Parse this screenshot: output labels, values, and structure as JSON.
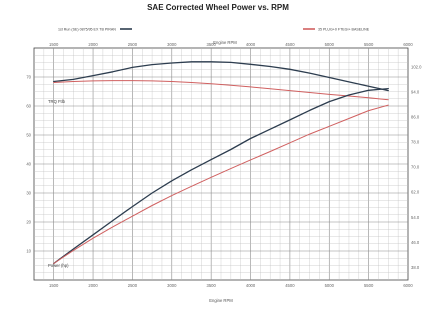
{
  "chart_data": {
    "type": "line",
    "title": "SAE Corrected Wheel Power vs. RPM",
    "subtitle": "",
    "xlabel": "Engine RPM",
    "ylabel": "",
    "y2label": "",
    "x": [
      1500,
      1750,
      2000,
      2250,
      2500,
      2750,
      3000,
      3250,
      3500,
      3750,
      4000,
      4250,
      4500,
      4750,
      5000,
      5250,
      5500,
      5750
    ],
    "xlim": [
      1250,
      6000
    ],
    "xticks": [
      1500,
      2000,
      2500,
      3000,
      3500,
      4000,
      4500,
      5000,
      5500,
      6000
    ],
    "ylim": [
      0,
      80
    ],
    "yticks": [
      10,
      20,
      30,
      40,
      50,
      60,
      70
    ],
    "y2lim": [
      34,
      108
    ],
    "y2ticks": [
      38,
      46,
      54,
      62,
      70,
      78,
      86,
      94,
      102
    ],
    "grid": true,
    "axis_annotations": {
      "torque": "TRQ Ftlb",
      "power": "Power (hp)"
    },
    "series": [
      {
        "role": "torque",
        "axis": "right",
        "color": "#2d3d4f",
        "values": [
          97.3,
          98.0,
          99.2,
          100.4,
          101.8,
          102.7,
          103.2,
          103.6,
          103.6,
          103.4,
          102.8,
          102.1,
          101.2,
          100.0,
          98.6,
          97.2,
          95.8,
          94.4
        ]
      },
      {
        "role": "torque",
        "axis": "right",
        "color": "#d06060",
        "values": [
          97.0,
          97.3,
          97.5,
          97.6,
          97.6,
          97.5,
          97.3,
          97.0,
          96.6,
          96.1,
          95.6,
          95.0,
          94.4,
          93.8,
          93.2,
          92.7,
          92.1,
          91.5
        ]
      },
      {
        "role": "power",
        "axis": "left",
        "color": "#2d3d4f",
        "values": [
          5.7,
          10.7,
          15.6,
          20.5,
          25.3,
          30.0,
          34.2,
          38.0,
          41.5,
          45.0,
          48.8,
          52.0,
          55.2,
          58.5,
          61.5,
          63.8,
          65.4,
          66.0
        ]
      },
      {
        "role": "power",
        "axis": "left",
        "color": "#d06060",
        "values": [
          5.7,
          10.2,
          14.4,
          18.3,
          22.0,
          25.7,
          29.1,
          32.3,
          35.4,
          38.4,
          41.4,
          44.3,
          47.3,
          50.3,
          53.0,
          55.7,
          58.4,
          60.3
        ]
      }
    ]
  },
  "legend": [
    {
      "label": "1st Run (SE) 0875/95 EX TB PIRAN",
      "color": "#2d3d4f"
    },
    {
      "label": "35 PLUG+0 FTEGI+ BASELINE",
      "color": "#d06060"
    }
  ]
}
